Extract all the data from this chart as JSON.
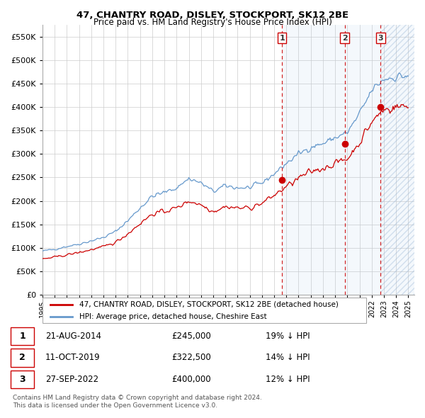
{
  "title": "47, CHANTRY ROAD, DISLEY, STOCKPORT, SK12 2BE",
  "subtitle": "Price paid vs. HM Land Registry's House Price Index (HPI)",
  "ylim": [
    0,
    575000
  ],
  "yticks": [
    0,
    50000,
    100000,
    150000,
    200000,
    250000,
    300000,
    350000,
    400000,
    450000,
    500000,
    550000
  ],
  "background_color": "#ffffff",
  "plot_bg_color": "#ffffff",
  "grid_color": "#cccccc",
  "legend_label_red": "47, CHANTRY ROAD, DISLEY, STOCKPORT, SK12 2BE (detached house)",
  "legend_label_blue": "HPI: Average price, detached house, Cheshire East",
  "footer": "Contains HM Land Registry data © Crown copyright and database right 2024.\nThis data is licensed under the Open Government Licence v3.0.",
  "transactions": [
    {
      "num": 1,
      "date": "21-AUG-2014",
      "price": "£245,000",
      "hpi": "19% ↓ HPI",
      "year": 2014.64,
      "price_val": 245000
    },
    {
      "num": 2,
      "date": "11-OCT-2019",
      "price": "£322,500",
      "hpi": "14% ↓ HPI",
      "year": 2019.78,
      "price_val": 322500
    },
    {
      "num": 3,
      "date": "27-SEP-2022",
      "price": "£400,000",
      "hpi": "12% ↓ HPI",
      "year": 2022.74,
      "price_val": 400000
    }
  ],
  "red_line_color": "#cc0000",
  "blue_line_color": "#6699cc",
  "vline_color": "#cc0000",
  "marker_color": "#cc0000",
  "xlim_left": 1995.0,
  "xlim_right": 2025.5,
  "xtick_years": [
    1995,
    1996,
    1997,
    1998,
    1999,
    2000,
    2001,
    2002,
    2003,
    2004,
    2005,
    2006,
    2007,
    2008,
    2009,
    2010,
    2011,
    2012,
    2013,
    2014,
    2015,
    2016,
    2017,
    2018,
    2019,
    2020,
    2021,
    2022,
    2023,
    2024,
    2025
  ]
}
